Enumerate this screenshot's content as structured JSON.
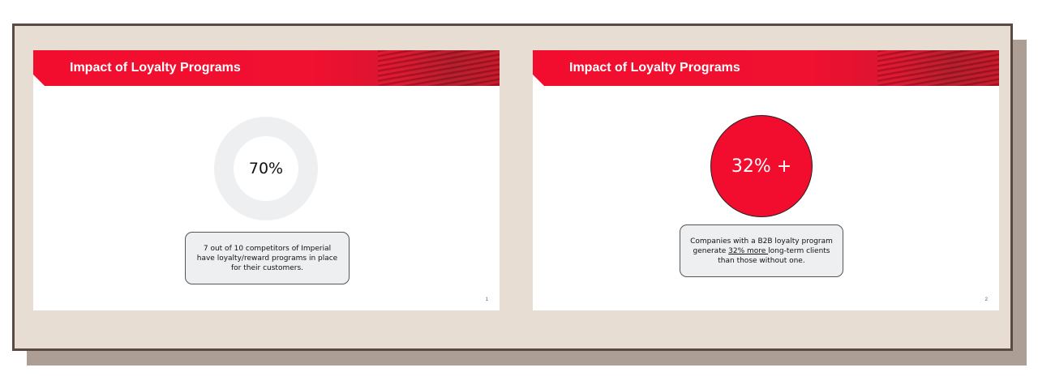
{
  "slides": [
    {
      "title": "Impact of Loyalty Programs",
      "stat": "70%",
      "stat_value": 0.7,
      "callout": "7 out of 10 competitors of Imperial have loyalty/reward programs in place for their customers.",
      "page_number": "1"
    },
    {
      "title": "Impact of Loyalty Programs",
      "stat": "32% +",
      "callout_before": "Companies with a B2B loyalty program generate ",
      "callout_highlight": "32% more ",
      "callout_after": "long-term clients than those without one.",
      "page_number": "2"
    }
  ],
  "colors": {
    "accent_red": "#f20d2e",
    "track_gray": "#eeeff1",
    "frame_bg": "#e8ddd2",
    "frame_border": "#5b4a44",
    "shadow": "#ad9e95"
  }
}
